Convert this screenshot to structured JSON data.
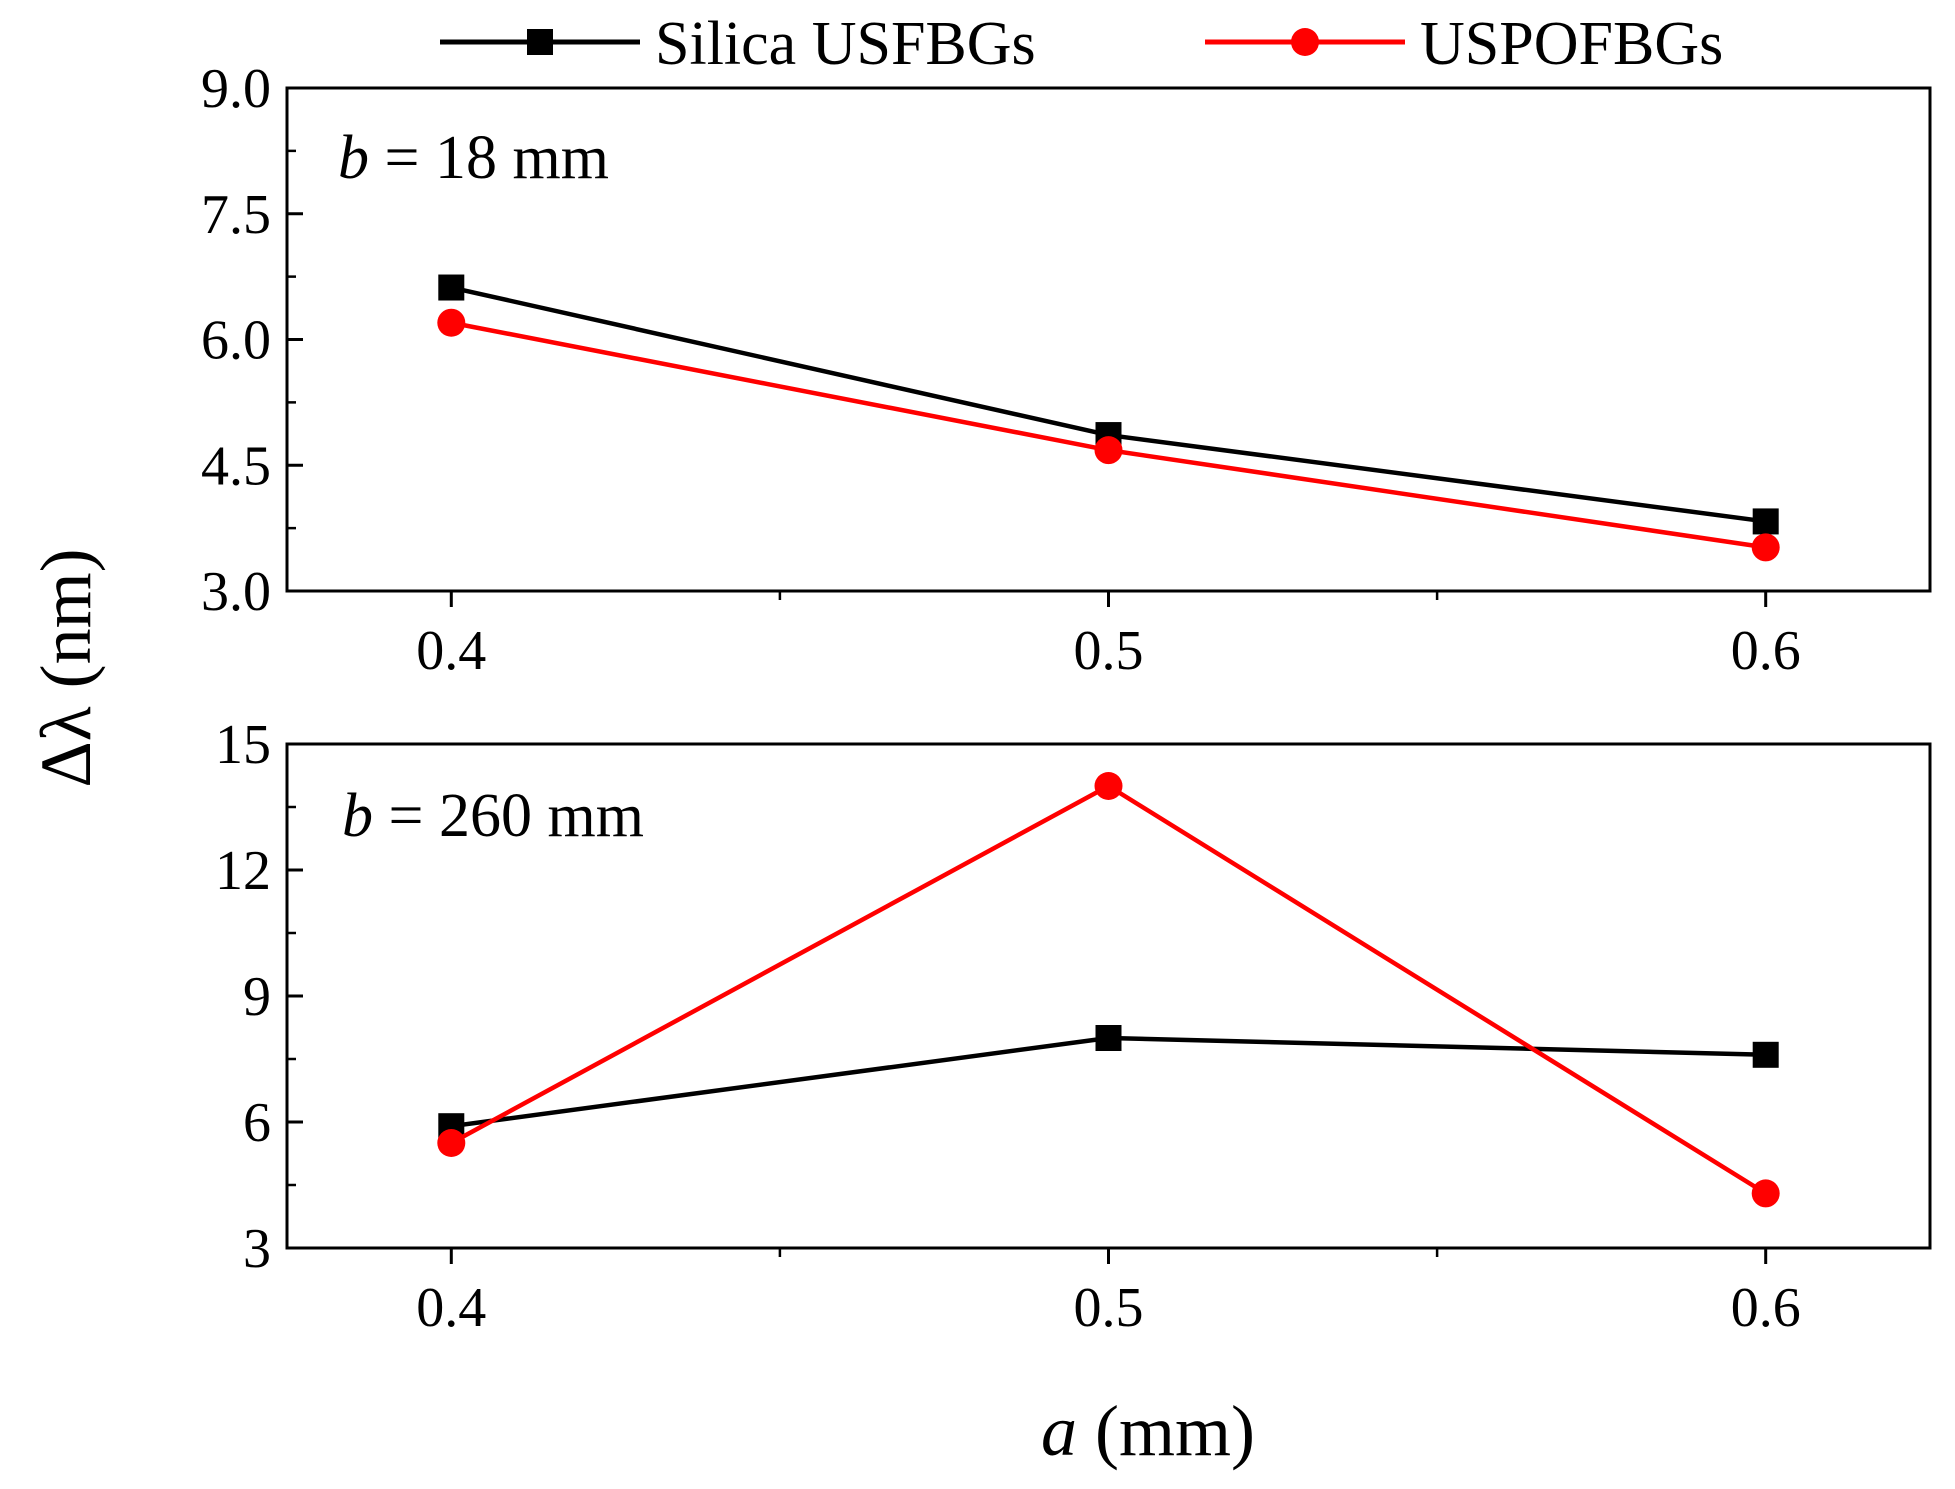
{
  "chart_data": [
    {
      "type": "line",
      "panel": "top",
      "annotation": {
        "italic": "b",
        "rest": " = 18 mm"
      },
      "xlabel": {
        "italic": "a",
        "rest": " (mm)"
      },
      "ylabel": "Δλ (nm)",
      "xlim": [
        0.375,
        0.625
      ],
      "ylim": [
        3.0,
        9.0
      ],
      "xticks": [
        "0.4",
        "0.5",
        "0.6"
      ],
      "xtick_values": [
        0.4,
        0.5,
        0.6
      ],
      "xminor_values": [
        0.45,
        0.55
      ],
      "yticks": [
        "3.0",
        "4.5",
        "6.0",
        "7.5",
        "9.0"
      ],
      "ytick_values": [
        3.0,
        4.5,
        6.0,
        7.5,
        9.0
      ],
      "yminor_values": [
        3.75,
        5.25,
        6.75,
        8.25
      ],
      "x": [
        0.4,
        0.5,
        0.6
      ],
      "series": [
        {
          "name": "Silica USFBGs",
          "color": "#000000",
          "marker": "square",
          "values": [
            6.62,
            4.86,
            3.83
          ]
        },
        {
          "name": "USPOFBGs",
          "color": "#ff0000",
          "marker": "circle",
          "values": [
            6.2,
            4.68,
            3.52
          ]
        }
      ]
    },
    {
      "type": "line",
      "panel": "bottom",
      "annotation": {
        "italic": "b",
        "rest": " = 260 mm"
      },
      "xlabel": {
        "italic": "a",
        "rest": " (mm)"
      },
      "ylabel": "Δλ (nm)",
      "xlim": [
        0.375,
        0.625
      ],
      "ylim": [
        3,
        15
      ],
      "xticks": [
        "0.4",
        "0.5",
        "0.6"
      ],
      "xtick_values": [
        0.4,
        0.5,
        0.6
      ],
      "xminor_values": [
        0.45,
        0.55
      ],
      "yticks": [
        "3",
        "6",
        "9",
        "12",
        "15"
      ],
      "ytick_values": [
        3,
        6,
        9,
        12,
        15
      ],
      "yminor_values": [
        4.5,
        7.5,
        10.5,
        13.5
      ],
      "x": [
        0.4,
        0.5,
        0.6
      ],
      "series": [
        {
          "name": "Silica USFBGs",
          "color": "#000000",
          "marker": "square",
          "values": [
            5.9,
            8.0,
            7.6
          ]
        },
        {
          "name": "USPOFBGs",
          "color": "#ff0000",
          "marker": "circle",
          "values": [
            5.5,
            14.0,
            4.3
          ]
        }
      ]
    }
  ],
  "legend": [
    {
      "label": "Silica USFBGs",
      "color": "#000000",
      "marker": "square"
    },
    {
      "label": "USPOFBGs",
      "color": "#ff0000",
      "marker": "circle"
    }
  ],
  "shared": {
    "ylabel": "Δλ (nm)",
    "xlabel_italic": "a",
    "xlabel_rest": " (mm)"
  }
}
